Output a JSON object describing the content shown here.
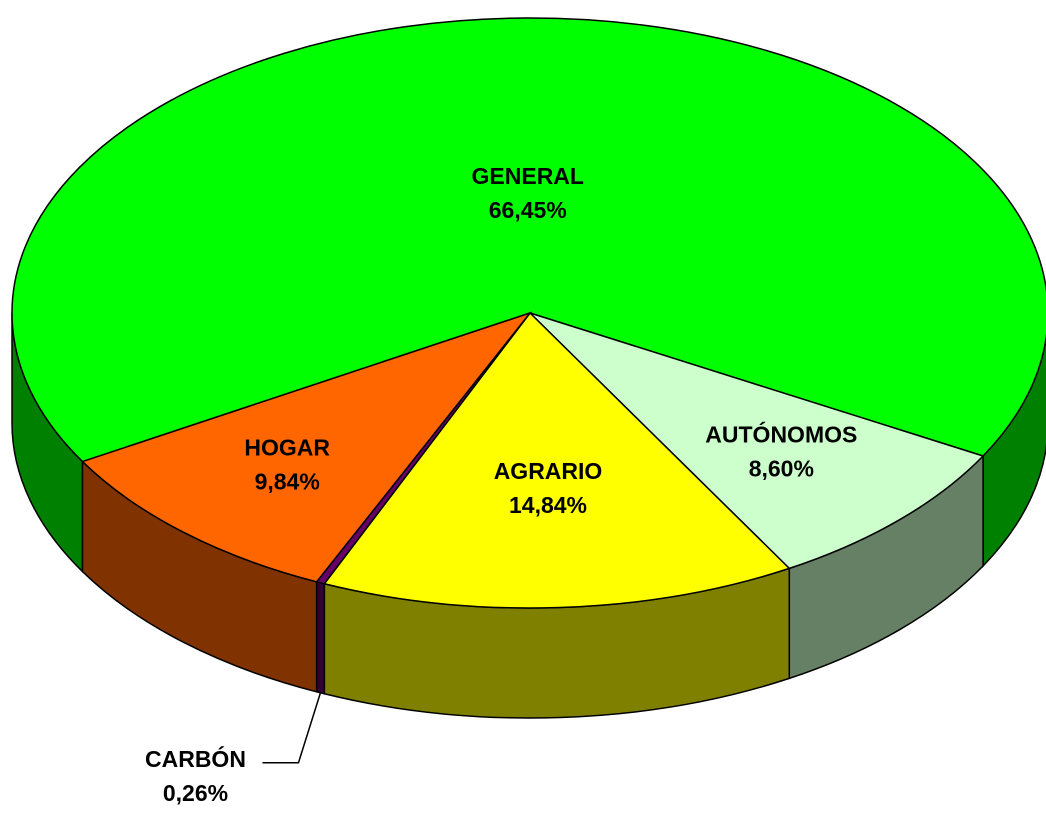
{
  "chart_data": {
    "type": "pie",
    "categories": [
      "GENERAL",
      "AUTÓNOMOS",
      "AGRARIO",
      "CARBÓN",
      "HOGAR"
    ],
    "values": [
      66.45,
      8.6,
      14.84,
      0.26,
      9.84
    ],
    "value_labels": [
      "66,45%",
      "8,60%",
      "14,84%",
      "0,26%",
      "9,84%"
    ],
    "colors": [
      "#00ff00",
      "#ccffcc",
      "#ffff00",
      "#660066",
      "#ff6600"
    ],
    "side_colors": [
      "#008000",
      "#668066",
      "#808000",
      "#330033",
      "#803300"
    ]
  }
}
